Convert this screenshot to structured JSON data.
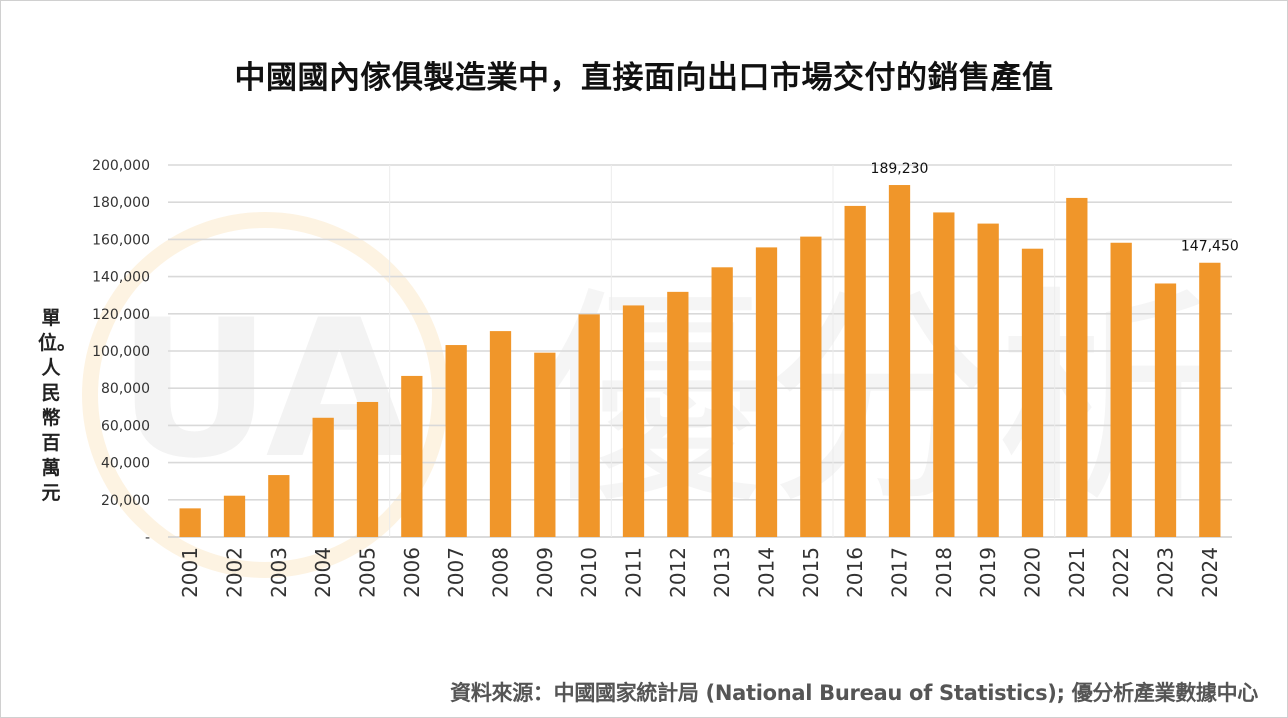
{
  "chart_data": {
    "type": "bar",
    "title": "中國國內傢俱製造業中，直接面向出口市場交付的銷售產值",
    "xlabel": "",
    "ylabel": "單位。人民幣百萬元",
    "ylim": [
      0,
      200000
    ],
    "ytick_step": 20000,
    "ytick_labels": [
      "-",
      "20,000",
      "40,000",
      "60,000",
      "80,000",
      "100,000",
      "120,000",
      "140,000",
      "160,000",
      "180,000",
      "200,000"
    ],
    "grid": true,
    "legend": "none",
    "bar_color": "#F0962A",
    "categories": [
      "2001",
      "2002",
      "2003",
      "2004",
      "2005",
      "2006",
      "2007",
      "2008",
      "2009",
      "2010",
      "2011",
      "2012",
      "2013",
      "2014",
      "2015",
      "2016",
      "2017",
      "2018",
      "2019",
      "2020",
      "2021",
      "2022",
      "2023",
      "2024"
    ],
    "values": [
      15400,
      22200,
      33300,
      64100,
      72600,
      86600,
      103200,
      110700,
      99100,
      119700,
      124500,
      131800,
      145000,
      155700,
      161500,
      178000,
      189230,
      174500,
      168500,
      155000,
      182300,
      158200,
      136300,
      147450
    ],
    "data_labels": [
      {
        "category": "2017",
        "text": "189,230"
      },
      {
        "category": "2024",
        "text": "147,450"
      }
    ],
    "source": "資料來源：中國國家統計局 (National Bureau of Statistics); 優分析產業數據中心"
  },
  "watermark": {
    "logo_text": "UA",
    "brand_text": "優分析"
  }
}
